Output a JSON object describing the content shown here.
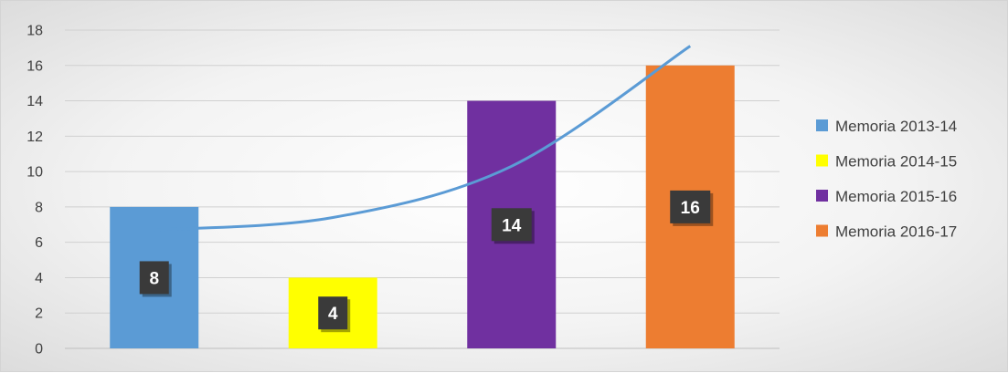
{
  "chart_data": {
    "type": "bar",
    "title": "",
    "xlabel": "",
    "ylabel": "",
    "ylim": [
      0,
      18
    ],
    "yticks": [
      0,
      2,
      4,
      6,
      8,
      10,
      12,
      14,
      16,
      18
    ],
    "grid": true,
    "legend_position": "right",
    "series": [
      {
        "name": "Memoria 2013-14",
        "value": 8,
        "color": "#5b9bd5"
      },
      {
        "name": "Memoria 2014-15",
        "value": 4,
        "color": "#ffff00"
      },
      {
        "name": "Memoria 2015-16",
        "value": 14,
        "color": "#7030a0"
      },
      {
        "name": "Memoria 2016-17",
        "value": 16,
        "color": "#ed7d31"
      }
    ],
    "data_labels": [
      "8",
      "4",
      "14",
      "16"
    ],
    "trendline": {
      "type": "polynomial",
      "color": "#5b9bd5",
      "points": [
        [
          1,
          6.7
        ],
        [
          2,
          7.4
        ],
        [
          3,
          10.3
        ],
        [
          4,
          17.1
        ]
      ]
    }
  }
}
